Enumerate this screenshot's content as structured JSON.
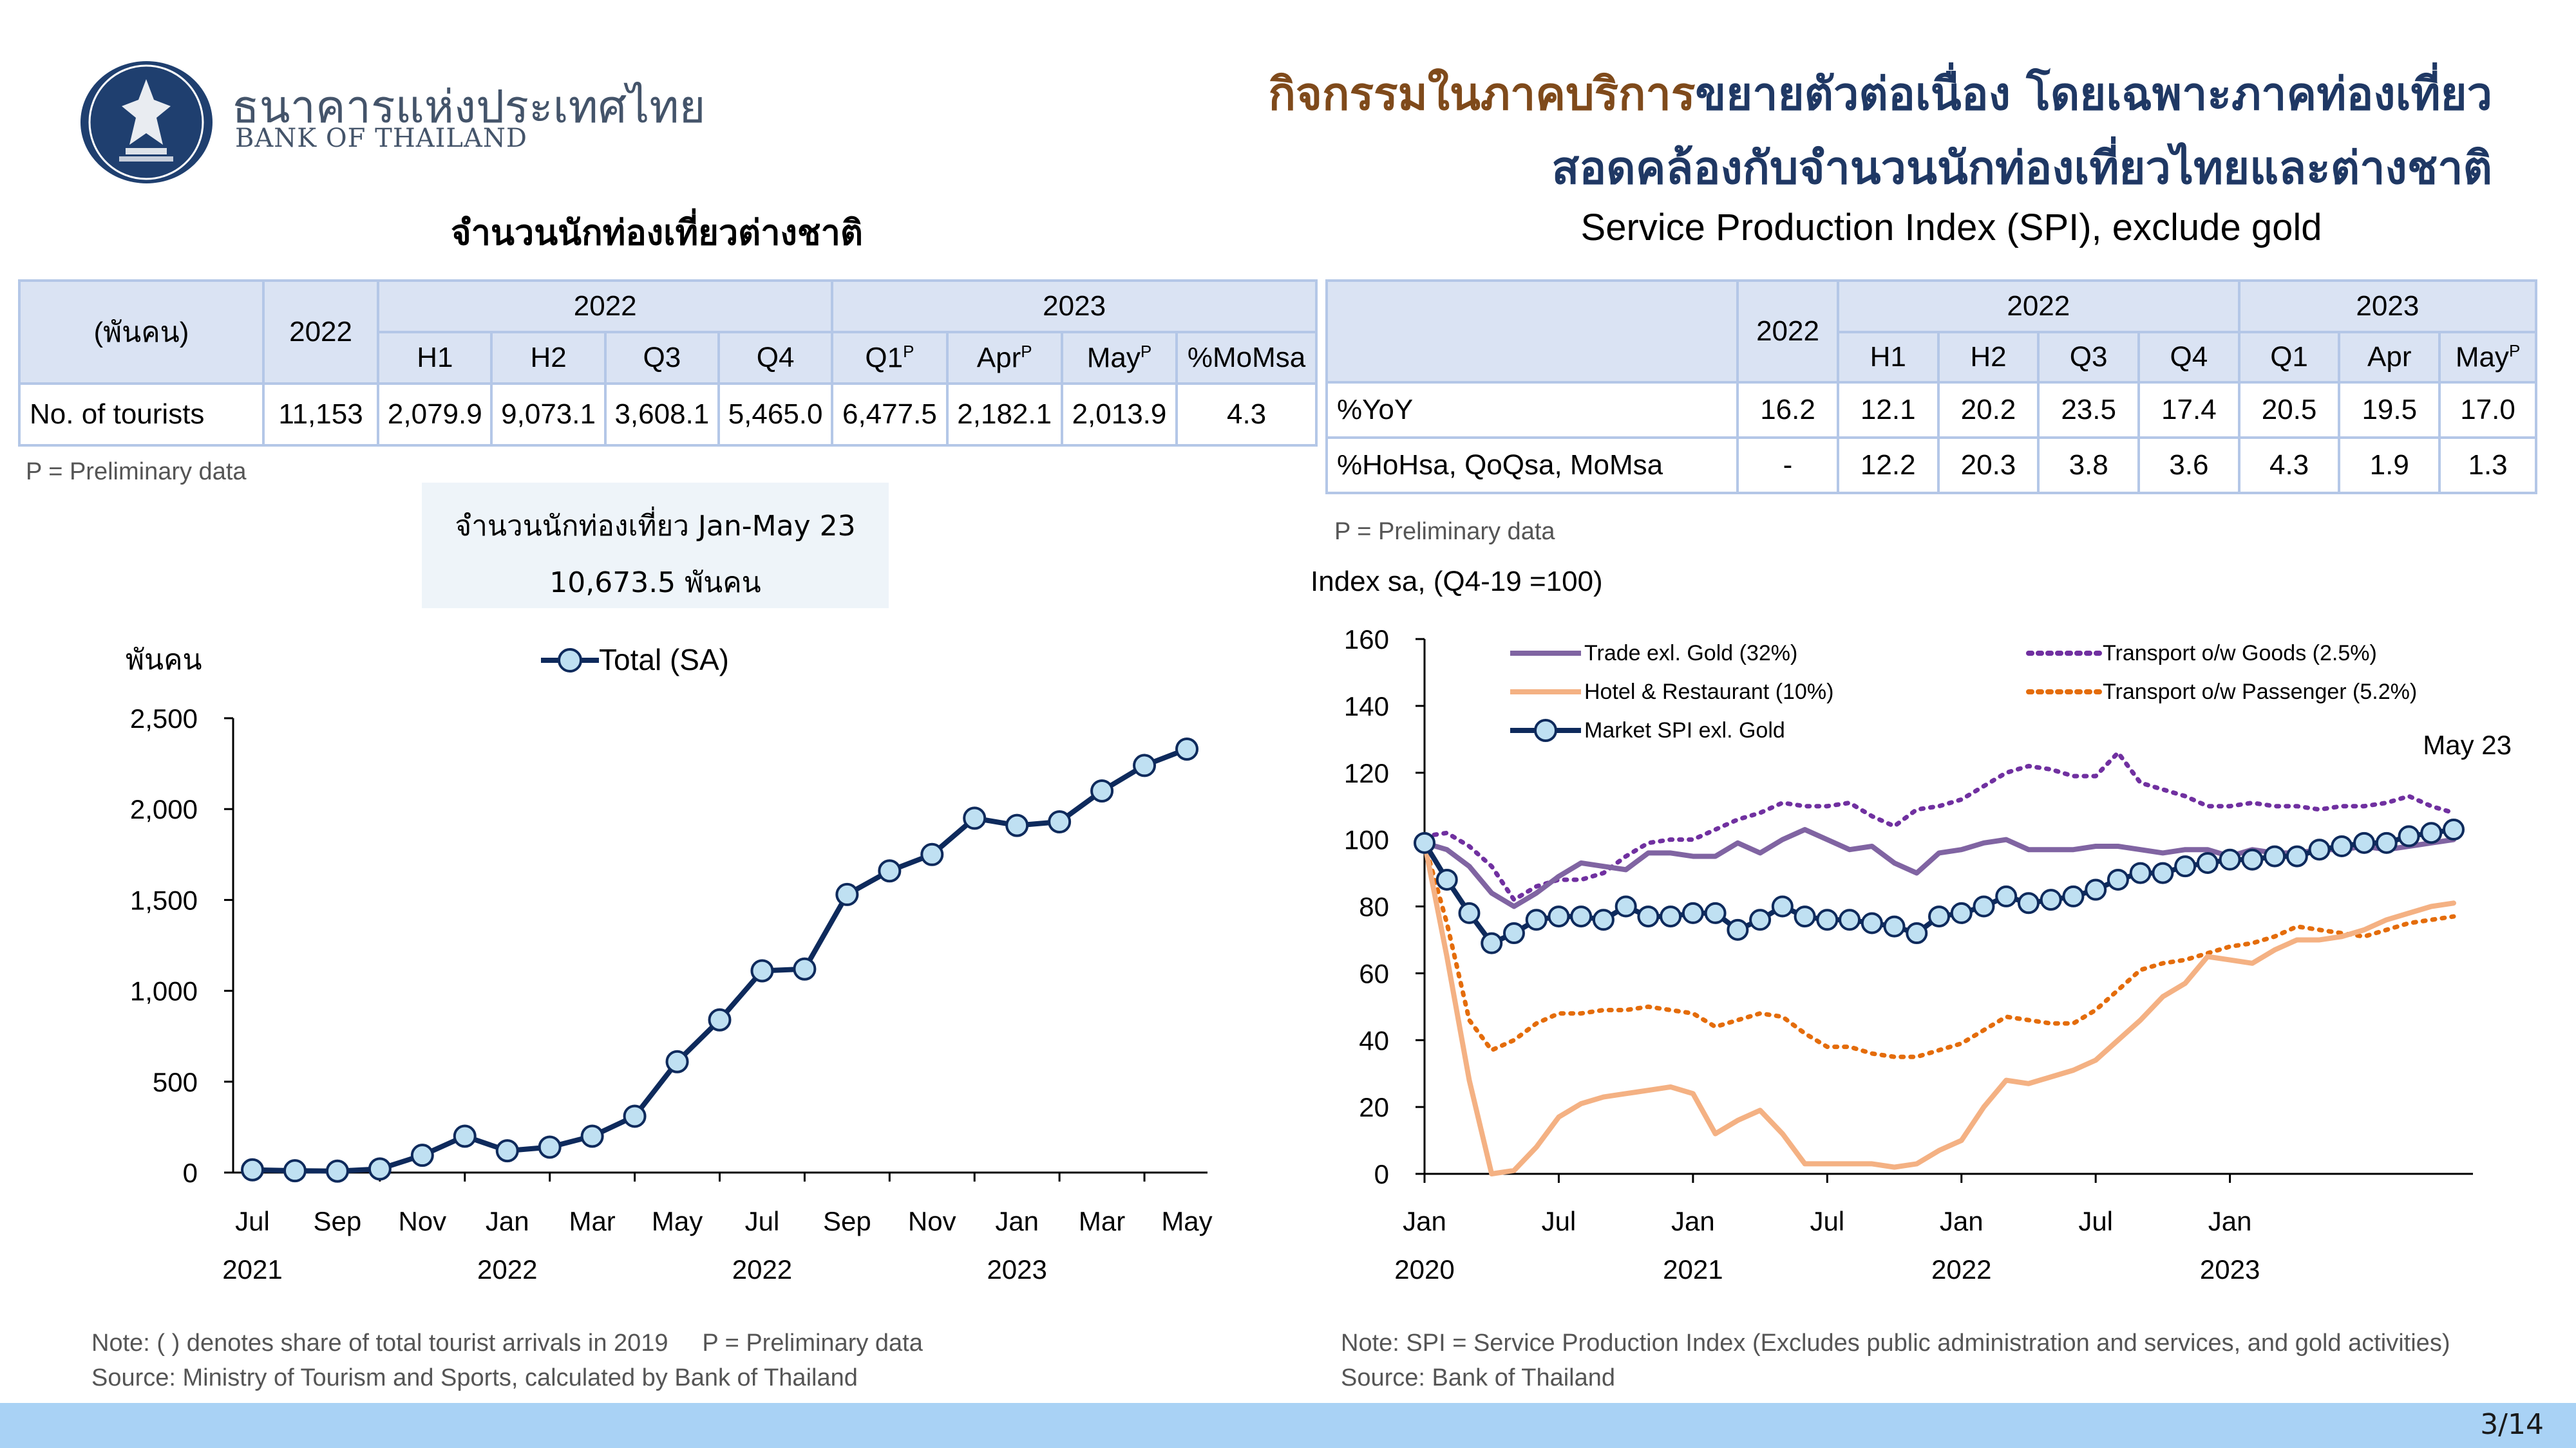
{
  "header": {
    "logo_th": "ธนาคารแห่งประเทศไทย",
    "logo_en": "BANK OF THAILAND",
    "title_highlight": "กิจกรรมในภาคบริการ",
    "title_rest": "ขยายตัวต่อเนื่อง โดยเฉพาะภาคท่องเที่ยว",
    "title_line2": "สอดคล้องกับจำนวนนักท่องเที่ยวไทยและต่างชาติ"
  },
  "left": {
    "subtitle": "จำนวนนักท่องเที่ยวต่างชาติ",
    "table": {
      "unit": "(พันคน)",
      "col_2022": "2022",
      "group_2022": "2022",
      "group_2023": "2023",
      "cols_2022": [
        "H1",
        "H2",
        "Q3",
        "Q4"
      ],
      "cols_2023": [
        "Q1",
        "Apr",
        "May"
      ],
      "sup_p": "P",
      "col_mom": "%MoMsa",
      "row_label": "No. of tourists",
      "row_values": [
        "11,153",
        "2,079.9",
        "9,073.1",
        "3,608.1",
        "5,465.0",
        "6,477.5",
        "2,182.1",
        "2,013.9",
        "4.3"
      ]
    },
    "prelim_note": "P = Preliminary data",
    "infobox_line1": "จำนวนนักท่องเที่ยว Jan-May 23",
    "infobox_line2": "10,673.5 พันคน",
    "footnote_line1": "Note: ( ) denotes share of total tourist arrivals in 2019     P = Preliminary data",
    "footnote_line2": "Source: Ministry of Tourism and Sports, calculated by Bank of Thailand"
  },
  "right": {
    "subtitle": "Service Production Index (SPI), exclude gold",
    "table": {
      "col_2022": "2022",
      "group_2022": "2022",
      "group_2023": "2023",
      "cols_2022": [
        "H1",
        "H2",
        "Q3",
        "Q4"
      ],
      "cols_2023": [
        "Q1",
        "Apr",
        "May"
      ],
      "sup_p": "P",
      "row1_label": "%YoY",
      "row1_values": [
        "16.2",
        "12.1",
        "20.2",
        "23.5",
        "17.4",
        "20.5",
        "19.5",
        "17.0"
      ],
      "row2_label": "%HoHsa, QoQsa, MoMsa",
      "row2_values": [
        "-",
        "12.2",
        "20.3",
        "3.8",
        "3.6",
        "4.3",
        "1.9",
        "1.3"
      ]
    },
    "prelim_note": "P = Preliminary data",
    "footnote_line1": "Note: SPI = Service Production Index (Excludes public administration and services, and gold activities)",
    "footnote_line2": "Source: Bank of Thailand"
  },
  "page_number": "3/14",
  "chart_data": [
    {
      "type": "line",
      "title": "",
      "ylabel": "พันคน",
      "ylim": [
        0,
        2500
      ],
      "yticks": [
        "0",
        "500",
        "1,000",
        "1,500",
        "2,000",
        "2,500"
      ],
      "xtick_months": [
        "Jul",
        "Sep",
        "Nov",
        "Jan",
        "Mar",
        "May",
        "Jul",
        "Sep",
        "Nov",
        "Jan",
        "Mar",
        "May"
      ],
      "xtick_years": [
        "2021",
        "2022",
        "2022",
        "2023"
      ],
      "series": [
        {
          "name": "Total (SA)",
          "color": "#0e2a5c",
          "marker_fill": "#bfe0f2",
          "values": [
            15,
            10,
            8,
            20,
            95,
            200,
            120,
            140,
            200,
            310,
            610,
            840,
            1110,
            1120,
            1530,
            1660,
            1750,
            1950,
            1910,
            1930,
            2100,
            2240,
            2330
          ]
        }
      ]
    },
    {
      "type": "line",
      "title": "Index sa, (Q4-19 =100)",
      "ylim": [
        0,
        160
      ],
      "yticks": [
        "0",
        "20",
        "40",
        "60",
        "80",
        "100",
        "120",
        "140",
        "160"
      ],
      "xtick_months": [
        "Jan",
        "Jul",
        "Jan",
        "Jul",
        "Jan",
        "Jul",
        "Jan"
      ],
      "xtick_years": [
        "2020",
        "2021",
        "2022",
        "2023"
      ],
      "annotation": "May 23",
      "series": [
        {
          "name": "Trade exl. Gold (32%)",
          "color": "#8064a2",
          "style": "solid",
          "values": [
            99,
            97,
            92,
            84,
            80,
            84,
            89,
            93,
            92,
            91,
            96,
            96,
            95,
            95,
            99,
            96,
            100,
            103,
            100,
            97,
            98,
            93,
            90,
            96,
            97,
            99,
            100,
            97,
            97,
            97,
            98,
            98,
            97,
            96,
            97,
            97,
            95,
            97,
            96,
            96,
            97,
            97,
            98,
            97,
            98,
            99,
            100
          ]
        },
        {
          "name": "Transport o/w Goods (2.5%)",
          "color": "#7030a0",
          "style": "dotted",
          "values": [
            101,
            102,
            98,
            92,
            82,
            86,
            88,
            88,
            90,
            95,
            99,
            100,
            100,
            103,
            106,
            108,
            111,
            110,
            110,
            111,
            107,
            104,
            109,
            110,
            112,
            116,
            120,
            122,
            121,
            119,
            119,
            126,
            117,
            115,
            113,
            110,
            110,
            111,
            110,
            110,
            109,
            110,
            110,
            111,
            113,
            110,
            108
          ]
        },
        {
          "name": "Hotel & Restaurant (10%)",
          "color": "#f4b183",
          "style": "solid",
          "values": [
            99,
            65,
            28,
            0,
            1,
            8,
            17,
            21,
            23,
            24,
            25,
            26,
            24,
            12,
            16,
            19,
            12,
            3,
            3,
            3,
            3,
            2,
            3,
            7,
            10,
            20,
            28,
            27,
            29,
            31,
            34,
            40,
            46,
            53,
            57,
            65,
            64,
            63,
            67,
            70,
            70,
            71,
            73,
            76,
            78,
            80,
            81
          ]
        },
        {
          "name": "Transport o/w Passenger (5.2%)",
          "color": "#e46c0a",
          "style": "dotted",
          "values": [
            99,
            75,
            46,
            37,
            40,
            45,
            48,
            48,
            49,
            49,
            50,
            49,
            48,
            44,
            46,
            48,
            47,
            42,
            38,
            38,
            36,
            35,
            35,
            37,
            39,
            43,
            47,
            46,
            45,
            45,
            49,
            55,
            61,
            63,
            64,
            66,
            68,
            69,
            71,
            74,
            73,
            72,
            71,
            73,
            75,
            76,
            77
          ]
        },
        {
          "name": "Market SPI exl. Gold",
          "color": "#0e2a5c",
          "style": "solid-marker",
          "marker_fill": "#bfe0f2",
          "values": [
            99,
            88,
            78,
            69,
            72,
            76,
            77,
            77,
            76,
            80,
            77,
            77,
            78,
            78,
            73,
            76,
            80,
            77,
            76,
            76,
            75,
            74,
            72,
            77,
            78,
            80,
            83,
            81,
            82,
            83,
            85,
            88,
            90,
            90,
            92,
            93,
            94,
            94,
            95,
            95,
            97,
            98,
            99,
            99,
            101,
            102,
            103
          ]
        }
      ]
    }
  ]
}
